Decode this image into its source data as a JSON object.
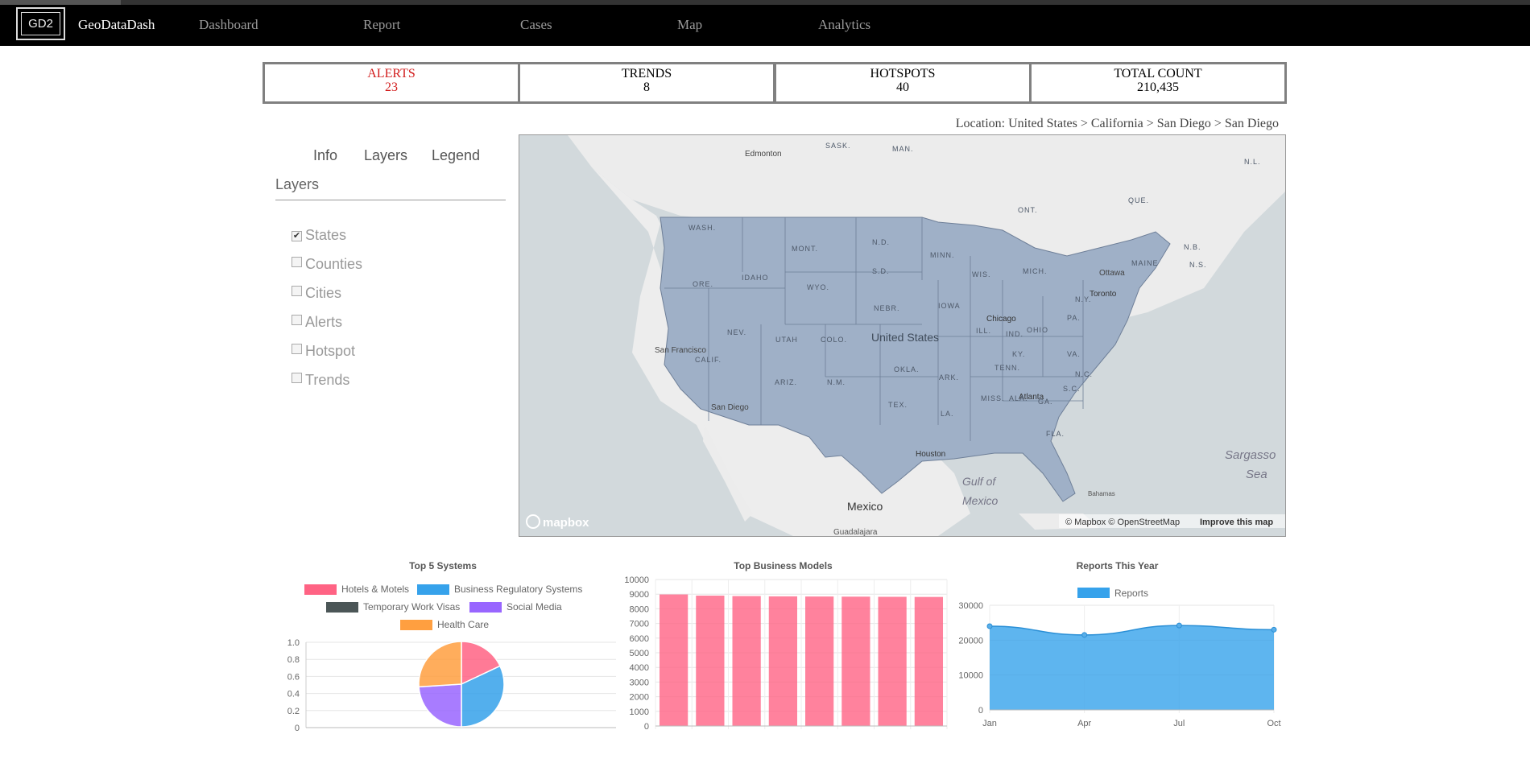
{
  "nav": {
    "logo": "GD2",
    "brand": "GeoDataDash",
    "links": [
      "Dashboard",
      "Report",
      "Cases",
      "Map",
      "Analytics"
    ]
  },
  "stats": [
    {
      "label": "ALERTS",
      "value": "23",
      "color": "#d21c1c"
    },
    {
      "label": "TRENDS",
      "value": "8"
    },
    {
      "label": "HOTSPOTS",
      "value": "40"
    },
    {
      "label": "TOTAL COUNT",
      "value": "210,435"
    }
  ],
  "location": "Location: United States > California > San Diego > San Diego",
  "panel": {
    "tabs": [
      "Info",
      "Layers",
      "Legend"
    ],
    "title": "Layers",
    "layers": [
      {
        "label": "States",
        "checked": true
      },
      {
        "label": "Counties",
        "checked": false
      },
      {
        "label": "Cities",
        "checked": false
      },
      {
        "label": "Alerts",
        "checked": false
      },
      {
        "label": "Hotspot",
        "checked": false
      },
      {
        "label": "Trends",
        "checked": false
      }
    ]
  },
  "map": {
    "country_label": "United States",
    "mexico_label": "Mexico",
    "gulf_label": "Gulf of\nMexico",
    "sargasso_label": "Sargasso\nSea",
    "city_labels": [
      "Edmonton",
      "San Francisco",
      "San Diego",
      "Chicago",
      "Toronto",
      "Ottawa",
      "Atlanta",
      "Houston",
      "Guadalajara",
      "Bahamas"
    ],
    "region_labels": [
      "SASK.",
      "MAN.",
      "ONT.",
      "QUE.",
      "N.L.",
      "WASH.",
      "MONT.",
      "N.D.",
      "MINN.",
      "ORE.",
      "IDAHO",
      "WYO.",
      "S.D.",
      "WIS.",
      "MICH.",
      "NEBR.",
      "IOWA",
      "NEV.",
      "UTAH",
      "COLO.",
      "ILL.",
      "IND.",
      "OHIO",
      "PA.",
      "N.Y.",
      "MAINE",
      "CALIF.",
      "ARIZ.",
      "N.M.",
      "OKLA.",
      "ARK.",
      "TENN.",
      "KY.",
      "VA.",
      "N.C.",
      "S.C.",
      "TEX.",
      "LA.",
      "MISS.",
      "ALA.",
      "GA.",
      "FLA.",
      "N.B.",
      "N.S."
    ],
    "attribution": "© Mapbox © OpenStreetMap",
    "improve_link": "Improve this map",
    "mapbox_logo": "mapbox",
    "state_fill": "#9fb0c7"
  },
  "charts": {
    "pie": {
      "title": "Top 5 Systems",
      "legend": [
        {
          "label": "Hotels & Motels",
          "color": "#ff6384"
        },
        {
          "label": "Business Regulatory Systems",
          "color": "#36a2eb"
        },
        {
          "label": "Temporary Work Visas",
          "color": "#4b5657"
        },
        {
          "label": "Social Media",
          "color": "#9966ff"
        },
        {
          "label": "Health Care",
          "color": "#ff9f40"
        }
      ]
    },
    "bar": {
      "title": "Top Business Models"
    },
    "area": {
      "title": "Reports This Year",
      "legend": "Reports"
    }
  },
  "chart_data": [
    {
      "type": "pie",
      "title": "Top 5 Systems",
      "labels": [
        "Hotels & Motels",
        "Business Regulatory Systems",
        "Temporary Work Visas",
        "Social Media",
        "Health Care"
      ],
      "values": [
        18,
        32,
        0,
        24,
        26
      ],
      "y_ticks": [
        "1.0",
        "0.8",
        "0.6",
        "0.4",
        "0.2",
        "0"
      ]
    },
    {
      "type": "bar",
      "title": "Top Business Models",
      "values": [
        8980,
        8900,
        8870,
        8850,
        8840,
        8830,
        8820,
        8810
      ],
      "ylim": [
        0,
        10000
      ],
      "y_ticks": [
        "10000",
        "9000",
        "8000",
        "7000",
        "6000",
        "5000",
        "4000",
        "3000",
        "2000",
        "1000",
        "0"
      ],
      "color": "#ff6384"
    },
    {
      "type": "area",
      "title": "Reports This Year",
      "series_name": "Reports",
      "categories": [
        "Jan",
        "Apr",
        "Jul",
        "Oct"
      ],
      "values": [
        24000,
        21500,
        24200,
        23000
      ],
      "ylim": [
        0,
        30000
      ],
      "y_ticks": [
        "30000",
        "20000",
        "10000",
        "0"
      ],
      "color": "#36a2eb"
    }
  ]
}
